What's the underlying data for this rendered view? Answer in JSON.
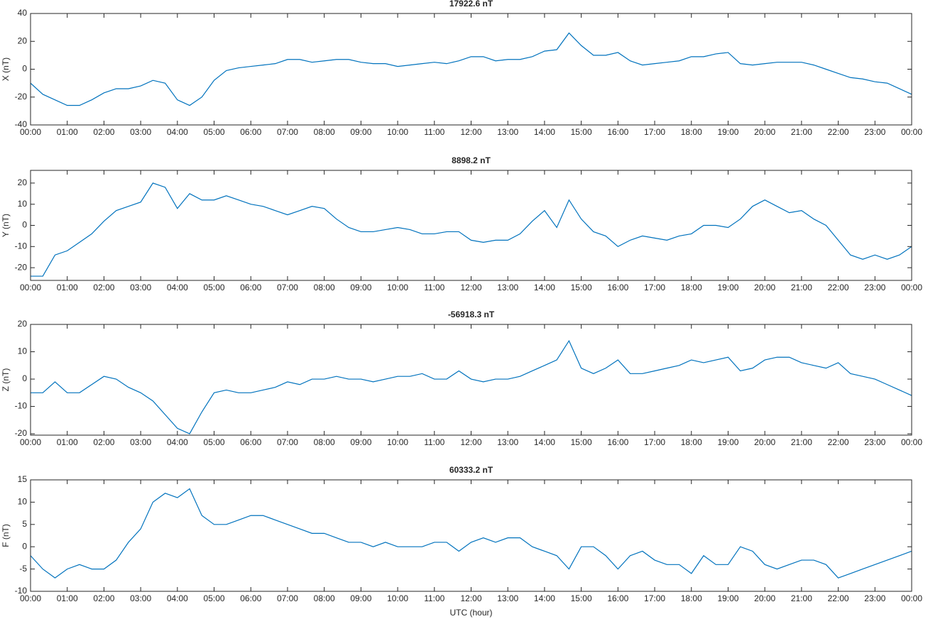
{
  "chart_data": [
    {
      "type": "line",
      "title": "17922.6 nT",
      "y_label": "X (nT)",
      "color": "#0072bd",
      "x": [
        0,
        20,
        40,
        60,
        80,
        100,
        120,
        140,
        160,
        180,
        200,
        220,
        240,
        260,
        280,
        300,
        320,
        340,
        360,
        380,
        400,
        420,
        440,
        460,
        480,
        500,
        520,
        540,
        560,
        580,
        600,
        620,
        640,
        660,
        680,
        700,
        720,
        740,
        760,
        780,
        800,
        820,
        840,
        860,
        880,
        900,
        920,
        940,
        960,
        980,
        1000,
        1020,
        1040,
        1060,
        1080,
        1100,
        1120,
        1140,
        1160,
        1180,
        1200,
        1220,
        1240,
        1260,
        1280,
        1300,
        1320,
        1340,
        1360,
        1380,
        1400,
        1420,
        1440
      ],
      "values": [
        -10,
        -18,
        -22,
        -26,
        -26,
        -22,
        -17,
        -14,
        -14,
        -12,
        -8,
        -10,
        -22,
        -26,
        -20,
        -8,
        -1,
        1,
        2,
        3,
        4,
        7,
        7,
        5,
        6,
        7,
        7,
        5,
        4,
        4,
        2,
        3,
        4,
        5,
        4,
        6,
        9,
        9,
        6,
        7,
        7,
        9,
        13,
        14,
        26,
        17,
        10,
        10,
        12,
        6,
        3,
        4,
        5,
        6,
        9,
        9,
        11,
        12,
        4,
        3,
        4,
        5,
        5,
        5,
        3,
        0,
        -3,
        -6,
        -7,
        -9,
        -10,
        -14,
        -18
      ],
      "xlim": [
        0,
        1440
      ],
      "ylim": [
        -40,
        40
      ],
      "yticks": [
        -40,
        -20,
        0,
        20,
        40
      ],
      "xticks": [
        {
          "value": 0,
          "label": "00:00"
        },
        {
          "value": 60,
          "label": "01:00"
        },
        {
          "value": 120,
          "label": "02:00"
        },
        {
          "value": 180,
          "label": "03:00"
        },
        {
          "value": 240,
          "label": "04:00"
        },
        {
          "value": 300,
          "label": "05:00"
        },
        {
          "value": 360,
          "label": "06:00"
        },
        {
          "value": 420,
          "label": "07:00"
        },
        {
          "value": 480,
          "label": "08:00"
        },
        {
          "value": 540,
          "label": "09:00"
        },
        {
          "value": 600,
          "label": "10:00"
        },
        {
          "value": 660,
          "label": "11:00"
        },
        {
          "value": 720,
          "label": "12:00"
        },
        {
          "value": 780,
          "label": "13:00"
        },
        {
          "value": 840,
          "label": "14:00"
        },
        {
          "value": 900,
          "label": "15:00"
        },
        {
          "value": 960,
          "label": "16:00"
        },
        {
          "value": 1020,
          "label": "17:00"
        },
        {
          "value": 1080,
          "label": "18:00"
        },
        {
          "value": 1140,
          "label": "19:00"
        },
        {
          "value": 1200,
          "label": "20:00"
        },
        {
          "value": 1260,
          "label": "21:00"
        },
        {
          "value": 1320,
          "label": "22:00"
        },
        {
          "value": 1380,
          "label": "23:00"
        },
        {
          "value": 1440,
          "label": "00:00"
        }
      ]
    },
    {
      "type": "line",
      "title": "8898.2 nT",
      "y_label": "Y (nT)",
      "color": "#0072bd",
      "x": [
        0,
        20,
        40,
        60,
        80,
        100,
        120,
        140,
        160,
        180,
        200,
        220,
        240,
        260,
        280,
        300,
        320,
        340,
        360,
        380,
        400,
        420,
        440,
        460,
        480,
        500,
        520,
        540,
        560,
        580,
        600,
        620,
        640,
        660,
        680,
        700,
        720,
        740,
        760,
        780,
        800,
        820,
        840,
        860,
        880,
        900,
        920,
        940,
        960,
        980,
        1000,
        1020,
        1040,
        1060,
        1080,
        1100,
        1120,
        1140,
        1160,
        1180,
        1200,
        1220,
        1240,
        1260,
        1280,
        1300,
        1320,
        1340,
        1360,
        1380,
        1400,
        1420,
        1440
      ],
      "values": [
        -24,
        -24,
        -14,
        -12,
        -8,
        -4,
        2,
        7,
        9,
        11,
        20,
        18,
        8,
        15,
        12,
        12,
        14,
        12,
        10,
        9,
        7,
        5,
        7,
        9,
        8,
        3,
        -1,
        -3,
        -3,
        -2,
        -1,
        -2,
        -4,
        -4,
        -3,
        -3,
        -7,
        -8,
        -7,
        -7,
        -4,
        2,
        7,
        -1,
        12,
        3,
        -3,
        -5,
        -10,
        -7,
        -5,
        -6,
        -7,
        -5,
        -4,
        0,
        0,
        -1,
        3,
        9,
        12,
        9,
        6,
        7,
        3,
        0,
        -7,
        -14,
        -16,
        -14,
        -16,
        -14,
        -10
      ],
      "xlim": [
        0,
        1440
      ],
      "ylim": [
        -26,
        26
      ],
      "yticks": [
        -20,
        -10,
        0,
        10,
        20
      ],
      "xticks": [
        {
          "value": 0,
          "label": "00:00"
        },
        {
          "value": 60,
          "label": "01:00"
        },
        {
          "value": 120,
          "label": "02:00"
        },
        {
          "value": 180,
          "label": "03:00"
        },
        {
          "value": 240,
          "label": "04:00"
        },
        {
          "value": 300,
          "label": "05:00"
        },
        {
          "value": 360,
          "label": "06:00"
        },
        {
          "value": 420,
          "label": "07:00"
        },
        {
          "value": 480,
          "label": "08:00"
        },
        {
          "value": 540,
          "label": "09:00"
        },
        {
          "value": 600,
          "label": "10:00"
        },
        {
          "value": 660,
          "label": "11:00"
        },
        {
          "value": 720,
          "label": "12:00"
        },
        {
          "value": 780,
          "label": "13:00"
        },
        {
          "value": 840,
          "label": "14:00"
        },
        {
          "value": 900,
          "label": "15:00"
        },
        {
          "value": 960,
          "label": "16:00"
        },
        {
          "value": 1020,
          "label": "17:00"
        },
        {
          "value": 1080,
          "label": "18:00"
        },
        {
          "value": 1140,
          "label": "19:00"
        },
        {
          "value": 1200,
          "label": "20:00"
        },
        {
          "value": 1260,
          "label": "21:00"
        },
        {
          "value": 1320,
          "label": "22:00"
        },
        {
          "value": 1380,
          "label": "23:00"
        },
        {
          "value": 1440,
          "label": "00:00"
        }
      ]
    },
    {
      "type": "line",
      "title": "-56918.3 nT",
      "y_label": "Z (nT)",
      "color": "#0072bd",
      "x": [
        0,
        20,
        40,
        60,
        80,
        100,
        120,
        140,
        160,
        180,
        200,
        220,
        240,
        260,
        280,
        300,
        320,
        340,
        360,
        380,
        400,
        420,
        440,
        460,
        480,
        500,
        520,
        540,
        560,
        580,
        600,
        620,
        640,
        660,
        680,
        700,
        720,
        740,
        760,
        780,
        800,
        820,
        840,
        860,
        880,
        900,
        920,
        940,
        960,
        980,
        1000,
        1020,
        1040,
        1060,
        1080,
        1100,
        1120,
        1140,
        1160,
        1180,
        1200,
        1220,
        1240,
        1260,
        1280,
        1300,
        1320,
        1340,
        1360,
        1380,
        1400,
        1420,
        1440
      ],
      "values": [
        -5,
        -5,
        -1,
        -5,
        -5,
        -2,
        1,
        0,
        -3,
        -5,
        -8,
        -13,
        -18,
        -20,
        -12,
        -5,
        -4,
        -5,
        -5,
        -4,
        -3,
        -1,
        -2,
        0,
        0,
        1,
        0,
        0,
        -1,
        0,
        1,
        1,
        2,
        0,
        0,
        3,
        0,
        -1,
        0,
        0,
        1,
        3,
        5,
        7,
        14,
        4,
        2,
        4,
        7,
        2,
        2,
        3,
        4,
        5,
        7,
        6,
        7,
        8,
        3,
        4,
        7,
        8,
        8,
        6,
        5,
        4,
        6,
        2,
        1,
        0,
        -2,
        -4,
        -6
      ],
      "xlim": [
        0,
        1440
      ],
      "ylim": [
        -20.5,
        20
      ],
      "yticks": [
        -20,
        -10,
        0,
        10,
        20
      ],
      "xticks": [
        {
          "value": 0,
          "label": "00:00"
        },
        {
          "value": 60,
          "label": "01:00"
        },
        {
          "value": 120,
          "label": "02:00"
        },
        {
          "value": 180,
          "label": "03:00"
        },
        {
          "value": 240,
          "label": "04:00"
        },
        {
          "value": 300,
          "label": "05:00"
        },
        {
          "value": 360,
          "label": "06:00"
        },
        {
          "value": 420,
          "label": "07:00"
        },
        {
          "value": 480,
          "label": "08:00"
        },
        {
          "value": 540,
          "label": "09:00"
        },
        {
          "value": 600,
          "label": "10:00"
        },
        {
          "value": 660,
          "label": "11:00"
        },
        {
          "value": 720,
          "label": "12:00"
        },
        {
          "value": 780,
          "label": "13:00"
        },
        {
          "value": 840,
          "label": "14:00"
        },
        {
          "value": 900,
          "label": "15:00"
        },
        {
          "value": 960,
          "label": "16:00"
        },
        {
          "value": 1020,
          "label": "17:00"
        },
        {
          "value": 1080,
          "label": "18:00"
        },
        {
          "value": 1140,
          "label": "19:00"
        },
        {
          "value": 1200,
          "label": "20:00"
        },
        {
          "value": 1260,
          "label": "21:00"
        },
        {
          "value": 1320,
          "label": "22:00"
        },
        {
          "value": 1380,
          "label": "23:00"
        },
        {
          "value": 1440,
          "label": "00:00"
        }
      ]
    },
    {
      "type": "line",
      "title": "60333.2 nT",
      "y_label": "F (nT)",
      "x_label": "UTC (hour)",
      "color": "#0072bd",
      "x": [
        0,
        20,
        40,
        60,
        80,
        100,
        120,
        140,
        160,
        180,
        200,
        220,
        240,
        260,
        280,
        300,
        320,
        340,
        360,
        380,
        400,
        420,
        440,
        460,
        480,
        500,
        520,
        540,
        560,
        580,
        600,
        620,
        640,
        660,
        680,
        700,
        720,
        740,
        760,
        780,
        800,
        820,
        840,
        860,
        880,
        900,
        920,
        940,
        960,
        980,
        1000,
        1020,
        1040,
        1060,
        1080,
        1100,
        1120,
        1140,
        1160,
        1180,
        1200,
        1220,
        1240,
        1260,
        1280,
        1300,
        1320,
        1340,
        1360,
        1380,
        1400,
        1420,
        1440
      ],
      "values": [
        -2,
        -5,
        -7,
        -5,
        -4,
        -5,
        -5,
        -3,
        1,
        4,
        10,
        12,
        11,
        13,
        7,
        5,
        5,
        6,
        7,
        7,
        6,
        5,
        4,
        3,
        3,
        2,
        1,
        1,
        0,
        1,
        0,
        0,
        0,
        1,
        1,
        -1,
        1,
        2,
        1,
        2,
        2,
        0,
        -1,
        -2,
        -5,
        0,
        0,
        -2,
        -5,
        -2,
        -1,
        -3,
        -4,
        -4,
        -6,
        -2,
        -4,
        -4,
        0,
        -1,
        -4,
        -5,
        -4,
        -3,
        -3,
        -4,
        -7,
        -6,
        -5,
        -4,
        -3,
        -2,
        -1
      ],
      "xlim": [
        0,
        1440
      ],
      "ylim": [
        -10,
        15
      ],
      "yticks": [
        -10,
        -5,
        0,
        5,
        10,
        15
      ],
      "xticks": [
        {
          "value": 0,
          "label": "00:00"
        },
        {
          "value": 60,
          "label": "01:00"
        },
        {
          "value": 120,
          "label": "02:00"
        },
        {
          "value": 180,
          "label": "03:00"
        },
        {
          "value": 240,
          "label": "04:00"
        },
        {
          "value": 300,
          "label": "05:00"
        },
        {
          "value": 360,
          "label": "06:00"
        },
        {
          "value": 420,
          "label": "07:00"
        },
        {
          "value": 480,
          "label": "08:00"
        },
        {
          "value": 540,
          "label": "09:00"
        },
        {
          "value": 600,
          "label": "10:00"
        },
        {
          "value": 660,
          "label": "11:00"
        },
        {
          "value": 720,
          "label": "12:00"
        },
        {
          "value": 780,
          "label": "13:00"
        },
        {
          "value": 840,
          "label": "14:00"
        },
        {
          "value": 900,
          "label": "15:00"
        },
        {
          "value": 960,
          "label": "16:00"
        },
        {
          "value": 1020,
          "label": "17:00"
        },
        {
          "value": 1080,
          "label": "18:00"
        },
        {
          "value": 1140,
          "label": "19:00"
        },
        {
          "value": 1200,
          "label": "20:00"
        },
        {
          "value": 1260,
          "label": "21:00"
        },
        {
          "value": 1320,
          "label": "22:00"
        },
        {
          "value": 1380,
          "label": "23:00"
        },
        {
          "value": 1440,
          "label": "00:00"
        }
      ]
    }
  ]
}
